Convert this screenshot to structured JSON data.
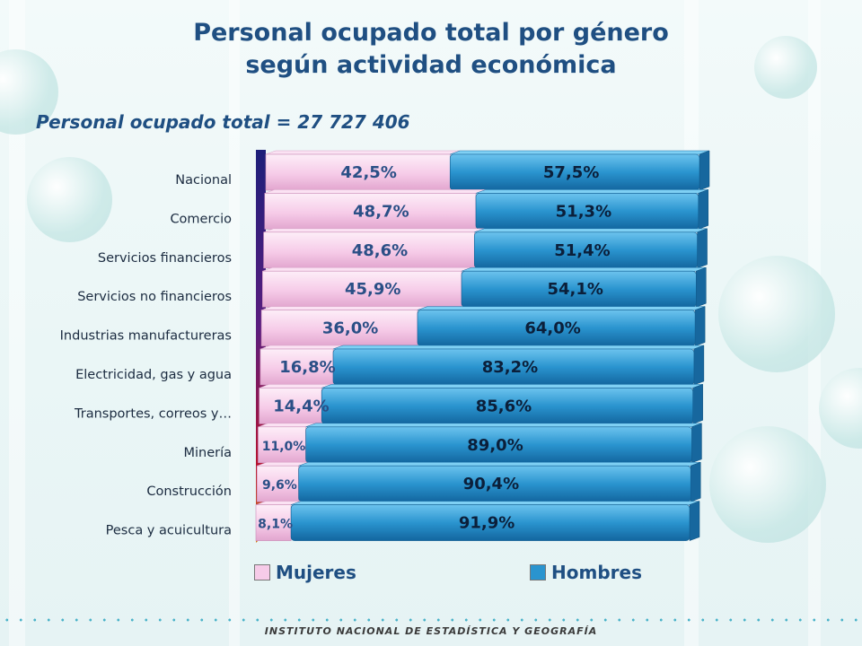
{
  "title_line1": "Personal ocupado total por género",
  "title_line2": "según actividad económica",
  "subtitle": "Personal ocupado total = 27 727 406",
  "footer": "INSTITUTO NACIONAL DE ESTADÍSTICA Y GEOGRAFÍA",
  "colors": {
    "mujeres": "#f6cbe8",
    "hombres": "#2a94cf",
    "title": "#1f4f82"
  },
  "chart_data": {
    "type": "bar",
    "orientation": "horizontal",
    "stacked": "percent",
    "title": "Personal ocupado total por género según actividad económica",
    "xlabel": "",
    "ylabel": "",
    "categories": [
      "Nacional",
      "Comercio",
      "Servicios financieros",
      "Servicios no financieros",
      "Industrias manufactureras",
      "Electricidad, gas y agua",
      "Transportes, correos y…",
      "Minería",
      "Construcción",
      "Pesca y acuicultura"
    ],
    "series": [
      {
        "name": "Mujeres",
        "values": [
          42.5,
          48.7,
          48.6,
          45.9,
          36.0,
          16.8,
          14.4,
          11.0,
          9.6,
          8.1
        ],
        "labels": [
          "42,5%",
          "48,7%",
          "48,6%",
          "45,9%",
          "36,0%",
          "16,8%",
          "14,4%",
          "11,0%",
          "9,6%",
          "8,1%"
        ]
      },
      {
        "name": "Hombres",
        "values": [
          57.5,
          51.3,
          51.4,
          54.1,
          64.0,
          83.2,
          85.6,
          89.0,
          90.4,
          91.9
        ],
        "labels": [
          "57,5%",
          "51,3%",
          "51,4%",
          "54,1%",
          "64,0%",
          "83,2%",
          "85,6%",
          "89,0%",
          "90,4%",
          "91,9%"
        ]
      }
    ],
    "xlim": [
      0,
      100
    ],
    "legend": "bottom",
    "grid": false
  }
}
